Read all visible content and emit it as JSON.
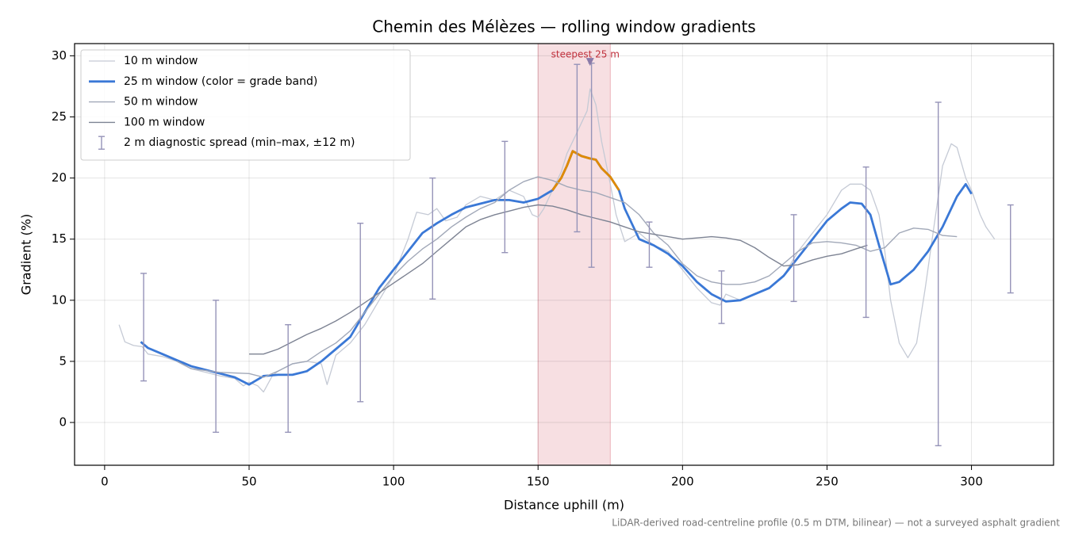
{
  "chart_data": {
    "type": "line",
    "title": "Chemin des Mélèzes — rolling window gradients",
    "x_label": "Distance uphill (m)",
    "y_label": "Gradient (%)",
    "footnote": "LiDAR-derived road-centreline profile (0.5 m DTM, bilinear) — not a surveyed asphalt gradient",
    "xlim": [
      -10.4,
      328.4
    ],
    "ylim": [
      -3.5,
      31.0
    ],
    "xticks": [
      0,
      50,
      100,
      150,
      200,
      250,
      300
    ],
    "yticks": [
      0,
      5,
      10,
      15,
      20,
      25,
      30
    ],
    "grid": true,
    "legend": "upper left",
    "span": {
      "range": [
        150,
        175
      ],
      "color": "#e8a4ac"
    },
    "annotation": {
      "text": "steepest 25 m",
      "x": 168,
      "y": 29.5,
      "color": "#c0303c",
      "marker_color": "#8a7aa8"
    },
    "series": [
      {
        "name": "10 m window",
        "color": "#c5cad5",
        "linewidth": 1.3,
        "x": [
          5,
          7,
          10,
          13,
          15,
          20,
          25,
          30,
          35,
          40,
          45,
          48,
          50,
          53,
          55,
          58,
          60,
          65,
          70,
          75,
          77,
          80,
          85,
          90,
          95,
          100,
          105,
          108,
          112,
          115,
          118,
          122,
          125,
          130,
          135,
          140,
          145,
          148,
          150,
          152,
          155,
          158,
          160,
          163,
          165,
          167,
          168,
          170,
          172,
          175,
          177,
          180,
          185,
          190,
          195,
          200,
          205,
          210,
          213,
          215,
          220,
          225,
          230,
          235,
          240,
          245,
          250,
          255,
          258,
          262,
          265,
          268,
          270,
          272,
          275,
          278,
          281,
          284,
          287,
          290,
          293,
          295,
          298,
          300,
          303,
          305,
          308
        ],
        "values": [
          8.0,
          6.6,
          6.3,
          6.2,
          5.6,
          5.4,
          5.0,
          4.4,
          4.1,
          3.8,
          3.6,
          3.0,
          3.3,
          3.0,
          2.5,
          3.8,
          4.2,
          4.8,
          5.0,
          4.8,
          3.1,
          5.5,
          6.5,
          8.0,
          10.0,
          12.0,
          15.0,
          17.2,
          17.0,
          17.5,
          16.5,
          16.8,
          17.8,
          18.5,
          18.2,
          19.0,
          18.5,
          17.0,
          16.8,
          17.5,
          19.0,
          20.5,
          22.0,
          23.5,
          24.5,
          25.5,
          27.3,
          26.0,
          23.0,
          19.5,
          17.0,
          14.8,
          15.5,
          14.5,
          14.0,
          12.5,
          11.0,
          9.8,
          9.6,
          10.5,
          10.0,
          10.5,
          11.0,
          12.0,
          14.0,
          15.5,
          17.0,
          19.0,
          19.5,
          19.5,
          19.0,
          17.0,
          14.0,
          10.0,
          6.5,
          5.3,
          6.5,
          11.0,
          16.0,
          21.0,
          22.8,
          22.5,
          20.0,
          19.0,
          17.0,
          16.0,
          15.0
        ]
      },
      {
        "name": "25 m window (color = grade band)",
        "color": "#3a78d6",
        "linewidth": 2.8,
        "band": {
          "threshold": 20,
          "color": "#e08a00"
        },
        "x": [
          12.5,
          15,
          20,
          25,
          30,
          35,
          40,
          45,
          50,
          55,
          60,
          65,
          70,
          75,
          80,
          85,
          90,
          95,
          100,
          105,
          110,
          115,
          120,
          125,
          130,
          135,
          140,
          145,
          150,
          155,
          158,
          160,
          162,
          165,
          168,
          170,
          172,
          175,
          178,
          180,
          185,
          190,
          195,
          200,
          205,
          210,
          215,
          220,
          225,
          230,
          235,
          240,
          245,
          250,
          255,
          258,
          262,
          265,
          268,
          272,
          275,
          280,
          285,
          290,
          295,
          298,
          300
        ],
        "values": [
          6.6,
          6.1,
          5.6,
          5.1,
          4.6,
          4.3,
          4.0,
          3.7,
          3.1,
          3.8,
          3.9,
          3.9,
          4.2,
          5.0,
          6.0,
          7.0,
          9.0,
          11.0,
          12.5,
          14.0,
          15.5,
          16.3,
          17.0,
          17.6,
          17.9,
          18.2,
          18.2,
          18.0,
          18.3,
          19.0,
          20.0,
          21.0,
          22.2,
          21.8,
          21.6,
          21.5,
          20.8,
          20.1,
          19.0,
          17.5,
          15.0,
          14.5,
          13.8,
          12.8,
          11.5,
          10.5,
          9.9,
          10.0,
          10.5,
          11.0,
          12.0,
          13.5,
          15.0,
          16.5,
          17.5,
          18.0,
          17.9,
          17.0,
          14.5,
          11.3,
          11.5,
          12.5,
          14.0,
          16.0,
          18.5,
          19.5,
          18.7
        ]
      },
      {
        "name": "50 m window",
        "color": "#a1a8b8",
        "linewidth": 1.4,
        "x": [
          25,
          30,
          40,
          50,
          55,
          60,
          65,
          70,
          75,
          80,
          85,
          90,
          95,
          100,
          105,
          110,
          115,
          120,
          125,
          130,
          135,
          140,
          145,
          150,
          155,
          160,
          165,
          170,
          175,
          180,
          185,
          190,
          195,
          200,
          205,
          210,
          215,
          220,
          225,
          230,
          235,
          240,
          245,
          250,
          255,
          260,
          265,
          270,
          275,
          280,
          285,
          290,
          295
        ],
        "values": [
          5.0,
          4.4,
          4.1,
          4.0,
          3.7,
          4.2,
          4.8,
          5.0,
          5.8,
          6.5,
          7.5,
          9.0,
          10.5,
          12.0,
          13.2,
          14.2,
          15.0,
          16.0,
          16.8,
          17.5,
          18.0,
          19.0,
          19.7,
          20.1,
          19.8,
          19.3,
          19.0,
          18.8,
          18.4,
          18.0,
          17.0,
          15.5,
          14.5,
          13.0,
          12.0,
          11.5,
          11.3,
          11.3,
          11.5,
          12.0,
          13.0,
          14.0,
          14.7,
          14.8,
          14.7,
          14.5,
          14.0,
          14.3,
          15.5,
          15.9,
          15.8,
          15.3,
          15.2
        ]
      },
      {
        "name": "100 m window",
        "color": "#7d8393",
        "linewidth": 1.4,
        "x": [
          50,
          55,
          60,
          65,
          70,
          75,
          80,
          85,
          90,
          95,
          100,
          105,
          110,
          115,
          120,
          125,
          130,
          135,
          140,
          145,
          150,
          155,
          160,
          165,
          170,
          175,
          180,
          185,
          190,
          195,
          200,
          205,
          210,
          215,
          220,
          225,
          230,
          235,
          240,
          245,
          250,
          255,
          260,
          264
        ],
        "values": [
          5.6,
          5.6,
          6.0,
          6.6,
          7.2,
          7.7,
          8.3,
          9.0,
          9.8,
          10.6,
          11.4,
          12.2,
          13.0,
          14.0,
          15.0,
          16.0,
          16.6,
          17.0,
          17.3,
          17.6,
          17.8,
          17.7,
          17.4,
          17.0,
          16.7,
          16.4,
          16.0,
          15.6,
          15.4,
          15.2,
          15.0,
          15.1,
          15.2,
          15.1,
          14.9,
          14.3,
          13.5,
          12.8,
          12.9,
          13.3,
          13.6,
          13.8,
          14.2,
          14.5
        ]
      }
    ],
    "errorbars": {
      "name": "2 m diagnostic spread (min–max, ±12 m)",
      "color": "#9593b8",
      "x": [
        13.5,
        38.5,
        63.5,
        88.5,
        113.5,
        138.5,
        163.5,
        168.5,
        188.5,
        213.5,
        238.5,
        263.5,
        288.5,
        313.5
      ],
      "min": [
        3.4,
        -0.8,
        -0.8,
        1.7,
        10.1,
        13.9,
        15.6,
        12.7,
        12.7,
        8.1,
        9.9,
        8.6,
        -1.9,
        10.6
      ],
      "max": [
        12.2,
        10.0,
        8.0,
        16.3,
        20.0,
        23.0,
        29.3,
        29.4,
        16.4,
        12.4,
        17.0,
        20.9,
        26.2,
        17.8
      ]
    }
  }
}
